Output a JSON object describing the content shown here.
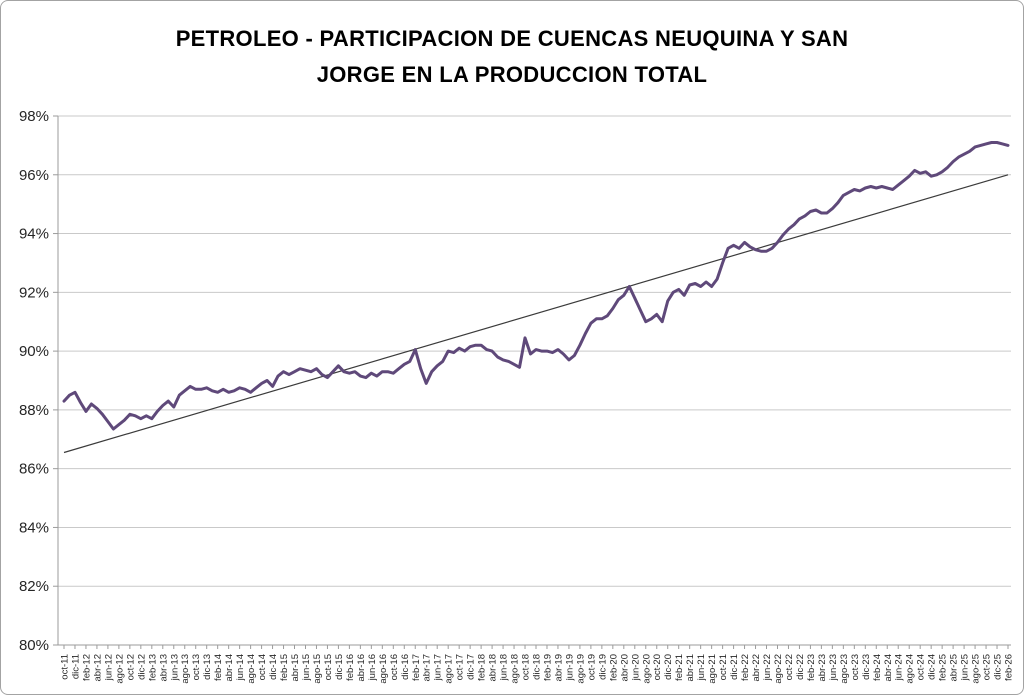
{
  "title_line1": "PETROLEO - PARTICIPACION DE CUENCAS NEUQUINA Y SAN",
  "title_line2": "JORGE EN LA PRODUCCION TOTAL",
  "colors": {
    "series_line": "#5F497A",
    "trend_line": "#3b3b3b",
    "gridline": "#c9c9c9",
    "axis": "#9b9b9b",
    "tick_label": "#262626",
    "chart_border": "#a3a3a3",
    "title_text": "#000000"
  },
  "chart_data": {
    "type": "line",
    "title": "PETROLEO - PARTICIPACION DE CUENCAS NEUQUINA Y SAN JORGE EN LA PRODUCCION TOTAL",
    "xlabel": "",
    "ylabel": "",
    "ylim": [
      80,
      98
    ],
    "y_tick_step": 2,
    "y_tick_labels": [
      "80%",
      "82%",
      "84%",
      "86%",
      "88%",
      "90%",
      "92%",
      "94%",
      "96%",
      "98%"
    ],
    "grid": "horizontal",
    "legend": "none",
    "months_per_tick": 2,
    "x_tick_labels": [
      "oct-11",
      "dic-11",
      "feb-12",
      "abr-12",
      "jun-12",
      "ago-12",
      "oct-12",
      "dic-12",
      "feb-13",
      "abr-13",
      "jun-13",
      "ago-13",
      "oct-13",
      "dic-13",
      "feb-14",
      "abr-14",
      "jun-14",
      "ago-14",
      "oct-14",
      "dic-14",
      "feb-15",
      "abr-15",
      "jun-15",
      "ago-15",
      "oct-15",
      "dic-15",
      "feb-16",
      "abr-16",
      "jun-16",
      "ago-16",
      "oct-16",
      "dic-16",
      "feb-17",
      "abr-17",
      "jun-17",
      "ago-17",
      "oct-17",
      "dic-17",
      "feb-18",
      "abr-18",
      "jun-18",
      "ago-18",
      "oct-18",
      "dic-18",
      "feb-19",
      "abr-19",
      "jun-19",
      "ago-19",
      "oct-19",
      "dic-19",
      "feb-20",
      "abr-20",
      "jun-20",
      "ago-20",
      "oct-20",
      "dic-20",
      "feb-21",
      "abr-21",
      "jun-21",
      "ago-21",
      "oct-21",
      "dic-21",
      "feb-22",
      "abr-22",
      "jun-22",
      "ago-22",
      "oct-22",
      "dic-22",
      "feb-23",
      "abr-23",
      "jun-23",
      "ago-23",
      "oct-23",
      "dic-23",
      "feb-24",
      "abr-24",
      "jun-24",
      "ago-24",
      "oct-24",
      "dic-24",
      "feb-25",
      "abr-25",
      "jun-25",
      "ago-25",
      "oct-25",
      "dic-25",
      "feb-26"
    ],
    "series": [
      {
        "values": [
          88.3,
          88.5,
          88.6,
          88.25,
          87.95,
          88.2,
          88.05,
          87.85,
          87.6,
          87.35,
          87.5,
          87.65,
          87.85,
          87.8,
          87.7,
          87.8,
          87.7,
          87.95,
          88.15,
          88.3,
          88.1,
          88.5,
          88.65,
          88.8,
          88.7,
          88.7,
          88.75,
          88.65,
          88.6,
          88.7,
          88.6,
          88.65,
          88.75,
          88.7,
          88.6,
          88.75,
          88.9,
          89.0,
          88.8,
          89.15,
          89.3,
          89.2,
          89.3,
          89.4,
          89.35,
          89.3,
          89.4,
          89.2,
          89.1,
          89.3,
          89.5,
          89.3,
          89.25,
          89.3,
          89.15,
          89.1,
          89.25,
          89.15,
          89.3,
          89.3,
          89.25,
          89.4,
          89.55,
          89.65,
          90.05,
          89.4,
          88.9,
          89.3,
          89.5,
          89.65,
          90.0,
          89.95,
          90.1,
          90.0,
          90.15,
          90.2,
          90.2,
          90.05,
          90.0,
          89.8,
          89.7,
          89.65,
          89.55,
          89.45,
          90.45,
          89.9,
          90.05,
          90.0,
          90.0,
          89.95,
          90.05,
          89.9,
          89.7,
          89.85,
          90.2,
          90.6,
          90.95,
          91.1,
          91.1,
          91.2,
          91.45,
          91.75,
          91.9,
          92.2,
          91.8,
          91.4,
          91.0,
          91.1,
          91.25,
          91.0,
          91.7,
          92.0,
          92.1,
          91.9,
          92.25,
          92.3,
          92.2,
          92.35,
          92.2,
          92.45,
          93.0,
          93.5,
          93.6,
          93.5,
          93.7,
          93.55,
          93.45,
          93.4,
          93.4,
          93.5,
          93.7,
          93.95,
          94.15,
          94.3,
          94.5,
          94.6,
          94.75,
          94.8,
          94.7,
          94.7,
          94.85,
          95.05,
          95.3,
          95.4,
          95.5,
          95.45,
          95.55,
          95.6,
          95.55,
          95.6,
          95.55,
          95.5,
          95.65,
          95.8,
          95.95,
          96.15,
          96.05,
          96.1,
          95.95,
          96.0,
          96.1,
          96.25,
          96.45,
          96.6,
          96.7,
          96.8,
          96.95,
          97.0,
          97.05,
          97.1,
          97.1,
          97.05,
          97.0
        ]
      }
    ],
    "trend_line": {
      "start_value": 86.55,
      "end_value": 96.0
    }
  }
}
